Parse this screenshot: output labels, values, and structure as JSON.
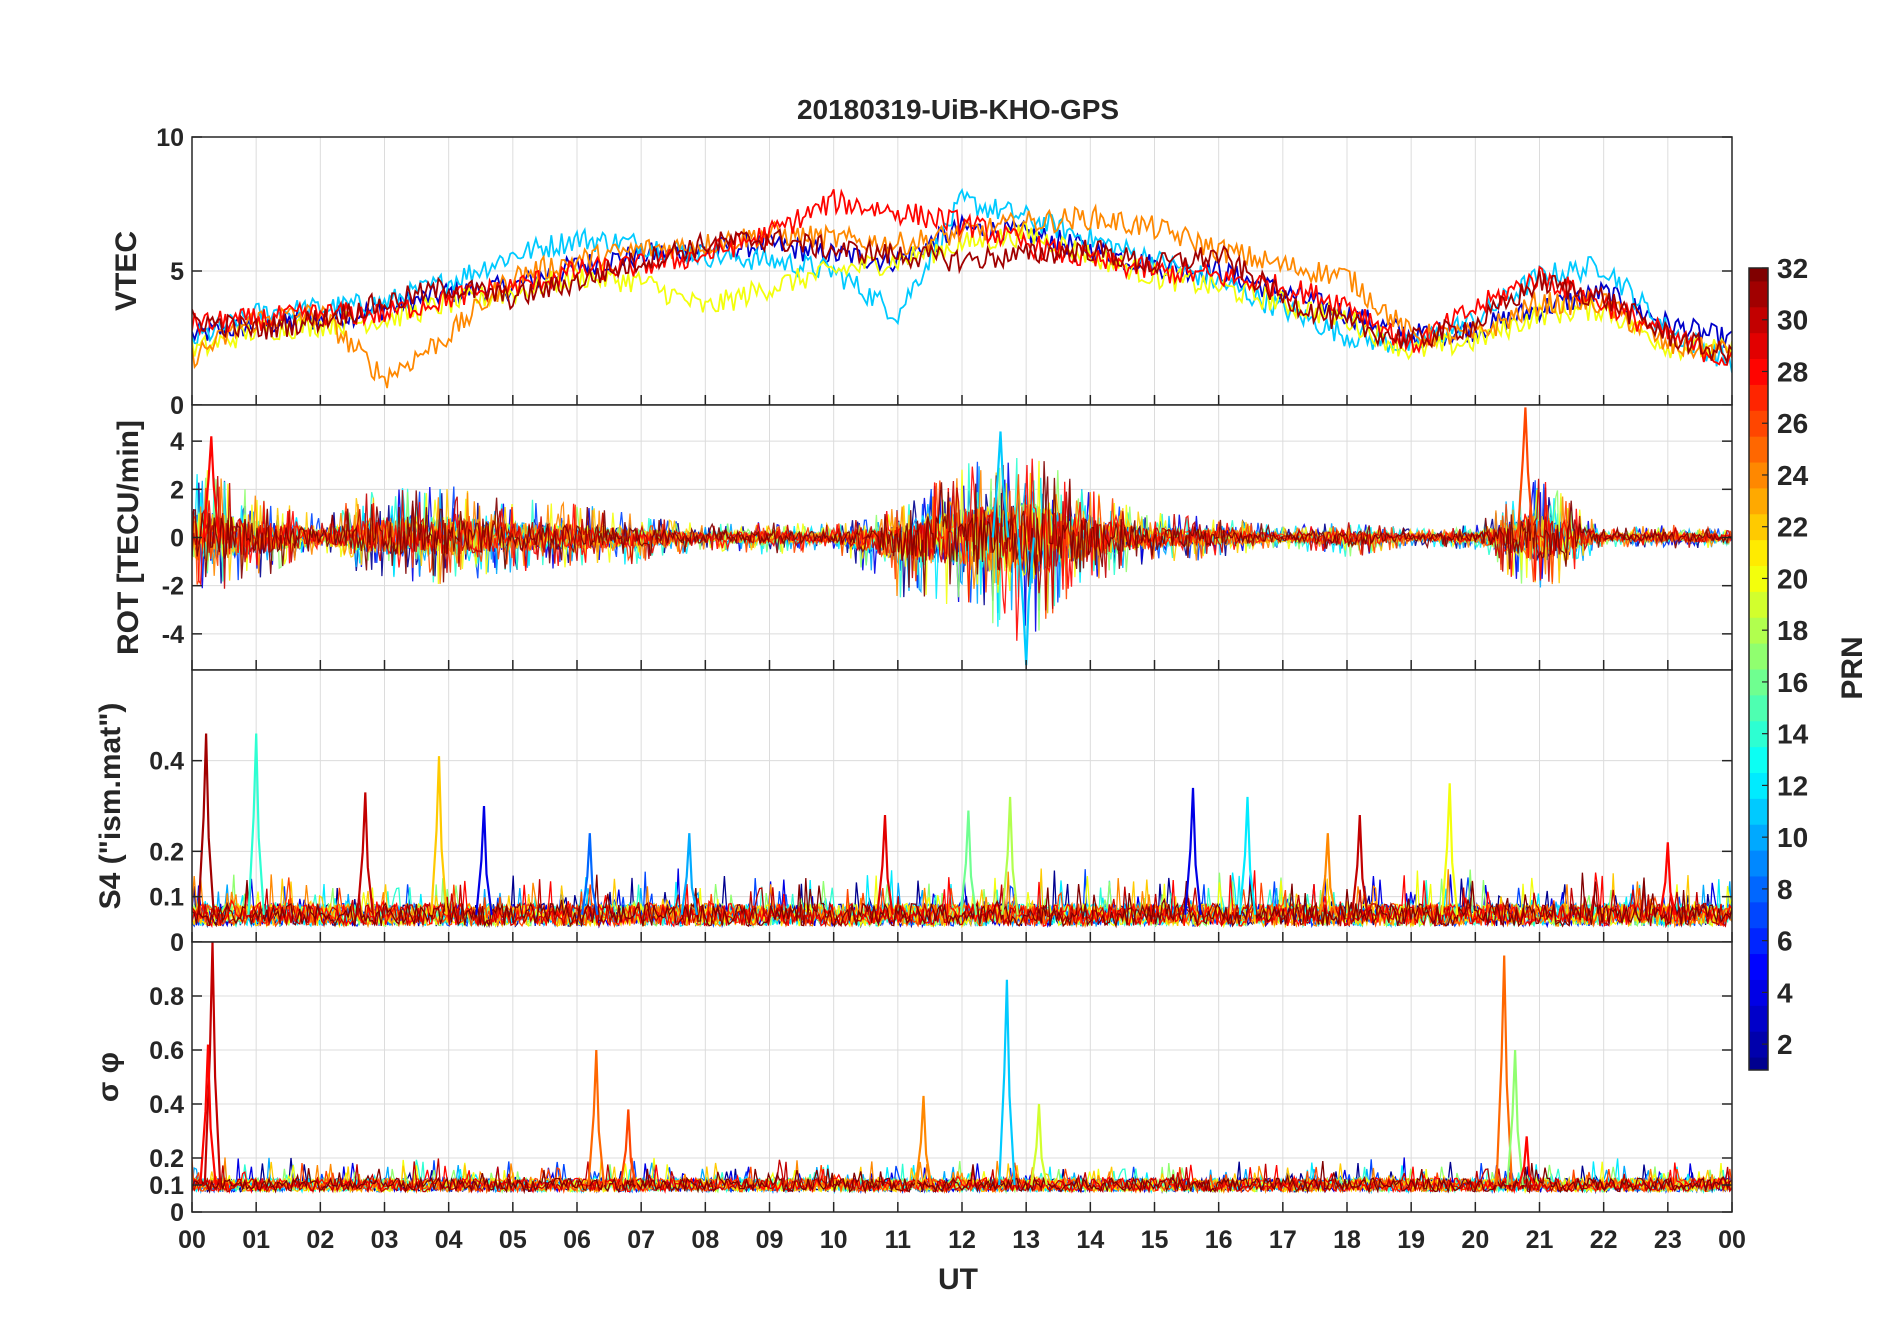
{
  "chart_data": {
    "type": "line",
    "title": "20180319-UiB-KHO-GPS",
    "xlabel": "UT",
    "x_tick_labels": [
      "00",
      "01",
      "02",
      "03",
      "04",
      "05",
      "06",
      "07",
      "08",
      "09",
      "10",
      "11",
      "12",
      "13",
      "14",
      "15",
      "16",
      "17",
      "18",
      "19",
      "20",
      "21",
      "22",
      "23",
      "00"
    ],
    "xlim_hours": [
      0,
      24
    ],
    "grid": true,
    "colorbar": {
      "label": "PRN",
      "range": [
        1,
        32
      ],
      "tick_labels": [
        "2",
        "4",
        "6",
        "8",
        "10",
        "12",
        "14",
        "16",
        "18",
        "20",
        "22",
        "24",
        "26",
        "28",
        "30",
        "32"
      ],
      "tick_values": [
        2,
        4,
        6,
        8,
        10,
        12,
        14,
        16,
        18,
        20,
        22,
        24,
        26,
        28,
        30,
        32
      ],
      "colormap": "jet",
      "colors": [
        "#00008f",
        "#0000ff",
        "#0080ff",
        "#00ffff",
        "#80ff80",
        "#ffff00",
        "#ff8000",
        "#ff0000",
        "#800000"
      ]
    },
    "panels": [
      {
        "id": "vtec",
        "ylabel": "VTEC",
        "ylim": [
          0,
          10
        ],
        "y_tick_labels": [
          "0",
          "5",
          "10"
        ],
        "y_tick_values": [
          0,
          5,
          10
        ],
        "series": [
          {
            "prn": 3,
            "x": [
              0,
              1,
              2,
              3,
              4,
              5,
              6,
              7,
              8,
              9,
              10,
              11,
              12,
              13,
              14,
              15,
              16,
              17,
              18,
              19,
              20,
              21,
              22,
              23,
              24
            ],
            "y": [
              2.6,
              3.0,
              3.2,
              3.6,
              4.2,
              4.4,
              5.2,
              5.6,
              5.8,
              6.0,
              5.6,
              5.4,
              6.6,
              6.4,
              5.8,
              5.2,
              5.0,
              4.2,
              3.4,
              2.6,
              2.8,
              3.6,
              4.2,
              3.0,
              2.4
            ]
          },
          {
            "prn": 11,
            "x": [
              0,
              1,
              2,
              3,
              4,
              5,
              6,
              7,
              8,
              9,
              10,
              11,
              12,
              13,
              14,
              15,
              16,
              17,
              18,
              19,
              20,
              21,
              22,
              23,
              24
            ],
            "y": [
              2.4,
              3.4,
              3.6,
              3.8,
              4.6,
              5.6,
              6.2,
              6.0,
              5.6,
              5.4,
              5.0,
              3.4,
              7.6,
              7.0,
              6.2,
              5.4,
              4.6,
              3.6,
              2.6,
              2.2,
              3.2,
              4.8,
              5.2,
              2.8,
              1.6
            ]
          },
          {
            "prn": 20,
            "x": [
              0,
              1,
              2,
              3,
              4,
              5,
              6,
              7,
              8,
              9,
              10,
              11,
              12,
              13,
              14,
              15,
              16,
              17,
              18,
              19,
              20,
              21,
              22,
              23,
              24
            ],
            "y": [
              2.0,
              2.8,
              3.0,
              3.2,
              3.8,
              4.2,
              4.8,
              4.6,
              3.6,
              4.4,
              5.0,
              5.4,
              6.0,
              6.4,
              5.6,
              4.8,
              4.4,
              3.8,
              3.2,
              2.0,
              2.4,
              3.4,
              3.6,
              2.2,
              2.0
            ]
          },
          {
            "prn": 24,
            "x": [
              0,
              1,
              2,
              3,
              4,
              5,
              6,
              7,
              8,
              9,
              10,
              11,
              12,
              13,
              14,
              15,
              16,
              17,
              18,
              19,
              20,
              21,
              22,
              23,
              24
            ],
            "y": [
              1.8,
              3.2,
              3.4,
              1.0,
              2.6,
              4.8,
              5.4,
              5.8,
              6.0,
              6.4,
              6.2,
              6.0,
              6.4,
              6.8,
              7.0,
              6.6,
              5.8,
              5.2,
              4.8,
              2.6,
              2.6,
              3.8,
              3.8,
              2.2,
              2.0
            ]
          },
          {
            "prn": 28,
            "x": [
              0,
              1,
              2,
              3,
              4,
              5,
              6,
              7,
              8,
              9,
              10,
              11,
              12,
              13,
              14,
              15,
              16,
              17,
              18,
              19,
              20,
              21,
              22,
              23,
              24
            ],
            "y": [
              3.0,
              3.2,
              3.4,
              3.4,
              4.0,
              4.4,
              5.0,
              5.2,
              5.6,
              6.4,
              7.6,
              7.2,
              6.8,
              6.0,
              5.4,
              5.0,
              4.8,
              4.4,
              3.8,
              2.2,
              3.6,
              4.8,
              3.8,
              2.6,
              1.6
            ]
          },
          {
            "prn": 31,
            "x": [
              0,
              1,
              2,
              3,
              4,
              5,
              6,
              7,
              8,
              9,
              10,
              11,
              12,
              13,
              14,
              15,
              16,
              17,
              18,
              19,
              20,
              21,
              22,
              23,
              24
            ],
            "y": [
              3.2,
              2.8,
              3.2,
              3.8,
              4.4,
              4.0,
              4.6,
              5.4,
              6.0,
              6.2,
              5.8,
              5.6,
              5.4,
              5.6,
              5.8,
              5.2,
              5.6,
              4.0,
              3.0,
              2.4,
              3.0,
              4.6,
              4.0,
              2.6,
              1.8
            ]
          }
        ]
      },
      {
        "id": "rot",
        "ylabel": "ROT [TECU/min]",
        "ylim": [
          -5.5,
          5.5
        ],
        "y_tick_labels": [
          "-4",
          "-2",
          "0",
          "2",
          "4"
        ],
        "y_tick_values": [
          -4,
          -2,
          0,
          2,
          4
        ],
        "envelope": {
          "x": [
            0,
            1,
            2,
            3,
            4,
            5,
            6,
            7,
            8,
            9,
            10,
            11,
            12,
            13,
            14,
            15,
            16,
            17,
            18,
            19,
            20,
            21,
            22,
            23,
            24
          ],
          "upper": [
            3.5,
            2.0,
            1.0,
            2.5,
            2.5,
            1.8,
            1.6,
            1.0,
            0.6,
            0.8,
            0.6,
            1.4,
            3.4,
            4.2,
            2.2,
            1.2,
            1.0,
            0.5,
            0.8,
            0.4,
            0.6,
            3.0,
            0.4,
            0.6,
            0.4
          ],
          "lower": [
            -3.0,
            -2.0,
            -1.0,
            -2.0,
            -2.2,
            -1.6,
            -1.4,
            -1.2,
            -0.6,
            -0.8,
            -0.6,
            -2.8,
            -3.4,
            -5.0,
            -2.2,
            -1.2,
            -1.0,
            -0.5,
            -1.0,
            -0.4,
            -0.6,
            -3.0,
            -0.4,
            -0.6,
            -0.4
          ]
        },
        "peaks": [
          {
            "x": 20.78,
            "y": 5.4,
            "prn": 26
          },
          {
            "x": 13.0,
            "y": -5.3,
            "prn": 11
          },
          {
            "x": 0.3,
            "y": 4.2,
            "prn": 28
          },
          {
            "x": 12.6,
            "y": 4.4,
            "prn": 11
          }
        ]
      },
      {
        "id": "s4",
        "ylabel": "S4 (\"ism.mat\")",
        "ylim": [
          0,
          0.6
        ],
        "y_tick_labels": [
          "0",
          "0.1",
          "0.2",
          "0.4"
        ],
        "y_tick_values": [
          0,
          0.1,
          0.2,
          0.4
        ],
        "baseline": 0.06,
        "peaks": [
          {
            "x": 0.22,
            "y": 0.46,
            "prn": 31
          },
          {
            "x": 1.0,
            "y": 0.46,
            "prn": 14
          },
          {
            "x": 2.7,
            "y": 0.33,
            "prn": 30
          },
          {
            "x": 3.85,
            "y": 0.41,
            "prn": 22
          },
          {
            "x": 4.55,
            "y": 0.3,
            "prn": 4
          },
          {
            "x": 6.2,
            "y": 0.24,
            "prn": 8
          },
          {
            "x": 7.75,
            "y": 0.24,
            "prn": 10
          },
          {
            "x": 10.8,
            "y": 0.28,
            "prn": 29
          },
          {
            "x": 12.1,
            "y": 0.29,
            "prn": 16
          },
          {
            "x": 12.75,
            "y": 0.32,
            "prn": 18
          },
          {
            "x": 15.6,
            "y": 0.34,
            "prn": 4
          },
          {
            "x": 16.45,
            "y": 0.32,
            "prn": 12
          },
          {
            "x": 17.7,
            "y": 0.24,
            "prn": 24
          },
          {
            "x": 18.2,
            "y": 0.28,
            "prn": 30
          },
          {
            "x": 19.6,
            "y": 0.35,
            "prn": 20
          },
          {
            "x": 23.0,
            "y": 0.22,
            "prn": 28
          }
        ]
      },
      {
        "id": "sigma_phi",
        "ylabel": "σ φ",
        "ylim": [
          0,
          1.0
        ],
        "y_tick_labels": [
          "0",
          "0.1",
          "0.2",
          "0.4",
          "0.6",
          "0.8"
        ],
        "y_tick_values": [
          0,
          0.1,
          0.2,
          0.4,
          0.6,
          0.8
        ],
        "baseline": 0.1,
        "peaks": [
          {
            "x": 0.32,
            "y": 1.0,
            "prn": 30
          },
          {
            "x": 0.25,
            "y": 0.62,
            "prn": 28
          },
          {
            "x": 6.3,
            "y": 0.6,
            "prn": 25
          },
          {
            "x": 6.8,
            "y": 0.38,
            "prn": 26
          },
          {
            "x": 11.4,
            "y": 0.43,
            "prn": 24
          },
          {
            "x": 12.7,
            "y": 0.86,
            "prn": 11
          },
          {
            "x": 13.2,
            "y": 0.4,
            "prn": 19
          },
          {
            "x": 20.45,
            "y": 0.95,
            "prn": 25
          },
          {
            "x": 20.62,
            "y": 0.6,
            "prn": 17
          },
          {
            "x": 20.8,
            "y": 0.28,
            "prn": 28
          }
        ]
      }
    ]
  }
}
